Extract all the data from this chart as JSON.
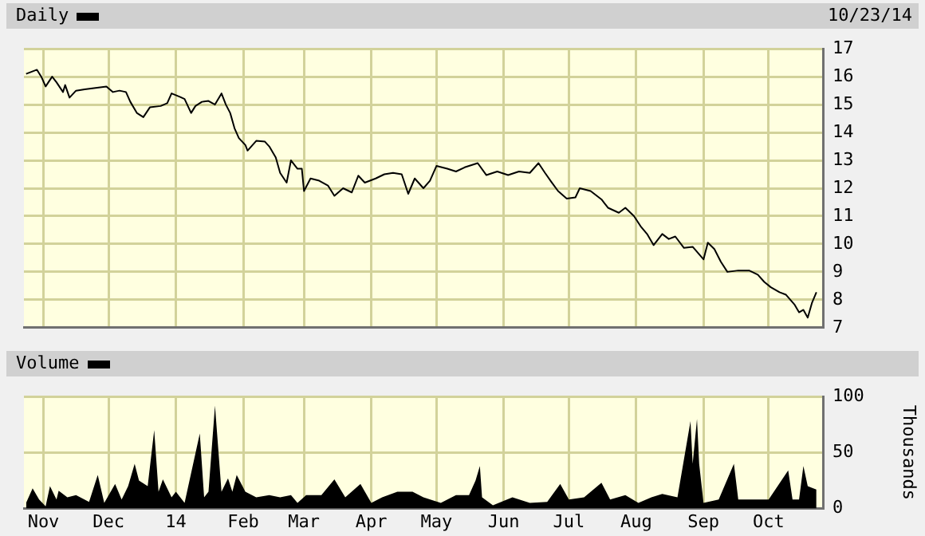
{
  "chart_data": [
    {
      "type": "line",
      "legend": "top left",
      "tick_labels": "y",
      "grid": true,
      "annotations": [
        "10/23/14"
      ],
      "xlim": [
        "2013-10-23",
        "2014-10-26"
      ],
      "xticks": [
        {
          "value": "2013-11-01",
          "label": null
        },
        {
          "value": "2013-12-01",
          "label": null
        },
        {
          "value": "2014-01-01",
          "label": null
        },
        {
          "value": "2014-02-01",
          "label": null
        },
        {
          "value": "2014-03-01",
          "label": null
        },
        {
          "value": "2014-04-01",
          "label": null
        },
        {
          "value": "2014-05-01",
          "label": null
        },
        {
          "value": "2014-06-01",
          "label": null
        },
        {
          "value": "2014-07-01",
          "label": null
        },
        {
          "value": "2014-08-01",
          "label": null
        },
        {
          "value": "2014-09-01",
          "label": null
        },
        {
          "value": "2014-10-01",
          "label": null
        }
      ],
      "ylim": [
        7,
        17
      ],
      "yticks": [
        7,
        8,
        9,
        10,
        11,
        12,
        13,
        14,
        15,
        16,
        17
      ],
      "x": [
        "2013-10-24",
        "2013-10-29",
        "2013-10-31",
        "2013-11-02",
        "2013-11-05",
        "2013-11-07",
        "2013-11-10",
        "2013-11-11",
        "2013-11-13",
        "2013-11-16",
        "2013-11-20",
        "2013-11-25",
        "2013-11-30",
        "2013-12-03",
        "2013-12-06",
        "2013-12-09",
        "2013-12-11",
        "2013-12-14",
        "2013-12-17",
        "2013-12-20",
        "2013-12-25",
        "2013-12-28",
        "2013-12-30",
        "2014-01-03",
        "2014-01-05",
        "2014-01-08",
        "2014-01-10",
        "2014-01-13",
        "2014-01-16",
        "2014-01-19",
        "2014-01-22",
        "2014-01-24",
        "2014-01-26",
        "2014-01-28",
        "2014-01-30",
        "2014-02-02",
        "2014-02-03",
        "2014-02-07",
        "2014-02-11",
        "2014-02-13",
        "2014-02-16",
        "2014-02-18",
        "2014-02-21",
        "2014-02-23",
        "2014-02-26",
        "2014-02-28",
        "2014-03-01",
        "2014-03-04",
        "2014-03-08",
        "2014-03-12",
        "2014-03-15",
        "2014-03-19",
        "2014-03-23",
        "2014-03-26",
        "2014-03-29",
        "2014-04-03",
        "2014-04-07",
        "2014-04-11",
        "2014-04-15",
        "2014-04-18",
        "2014-04-21",
        "2014-04-25",
        "2014-04-28",
        "2014-05-01",
        "2014-05-06",
        "2014-05-10",
        "2014-05-14",
        "2014-05-20",
        "2014-05-24",
        "2014-05-29",
        "2014-06-03",
        "2014-06-08",
        "2014-06-13",
        "2014-06-17",
        "2014-06-20",
        "2014-06-23",
        "2014-06-26",
        "2014-06-30",
        "2014-07-04",
        "2014-07-06",
        "2014-07-11",
        "2014-07-16",
        "2014-07-19",
        "2014-07-24",
        "2014-07-27",
        "2014-07-31",
        "2014-08-03",
        "2014-08-06",
        "2014-08-09",
        "2014-08-13",
        "2014-08-16",
        "2014-08-19",
        "2014-08-23",
        "2014-08-27",
        "2014-09-01",
        "2014-09-03",
        "2014-09-06",
        "2014-09-09",
        "2014-09-12",
        "2014-09-17",
        "2014-09-22",
        "2014-09-26",
        "2014-09-29",
        "2014-10-02",
        "2014-10-06",
        "2014-10-09",
        "2014-10-13",
        "2014-10-15",
        "2014-10-17",
        "2014-10-19",
        "2014-10-21",
        "2014-10-23"
      ],
      "series": [
        {
          "name": "Daily",
          "color": "#000000",
          "values": [
            16.1,
            16.25,
            16.0,
            15.65,
            16.0,
            15.8,
            15.45,
            15.7,
            15.25,
            15.5,
            15.55,
            15.6,
            15.65,
            15.45,
            15.5,
            15.45,
            15.1,
            14.7,
            14.55,
            14.9,
            14.95,
            15.05,
            15.4,
            15.27,
            15.2,
            14.7,
            14.95,
            15.1,
            15.13,
            15.0,
            15.4,
            15.0,
            14.7,
            14.15,
            13.8,
            13.55,
            13.35,
            13.7,
            13.67,
            13.5,
            13.1,
            12.55,
            12.2,
            13.0,
            12.7,
            12.7,
            11.9,
            12.35,
            12.27,
            12.1,
            11.73,
            12.0,
            11.85,
            12.45,
            12.2,
            12.35,
            12.5,
            12.55,
            12.5,
            11.8,
            12.35,
            12.0,
            12.27,
            12.8,
            12.7,
            12.6,
            12.75,
            12.9,
            12.47,
            12.6,
            12.47,
            12.6,
            12.55,
            12.9,
            12.55,
            12.22,
            11.9,
            11.63,
            11.67,
            12.0,
            11.9,
            11.6,
            11.3,
            11.12,
            11.3,
            11.0,
            10.64,
            10.36,
            9.96,
            10.36,
            10.18,
            10.27,
            9.86,
            9.9,
            9.45,
            10.05,
            9.82,
            9.36,
            9.0,
            9.05,
            9.05,
            8.9,
            8.64,
            8.45,
            8.27,
            8.18,
            7.82,
            7.55,
            7.64,
            7.36,
            7.9,
            8.27
          ]
        }
      ]
    },
    {
      "type": "area",
      "legend": "top left",
      "grid": true,
      "ylabel": "Thousands",
      "xlim": [
        "2013-10-23",
        "2014-10-26"
      ],
      "xticks": [
        {
          "value": "2013-11-01",
          "label": "Nov"
        },
        {
          "value": "2013-12-01",
          "label": "Dec"
        },
        {
          "value": "2014-01-01",
          "label": "14"
        },
        {
          "value": "2014-02-01",
          "label": "Feb"
        },
        {
          "value": "2014-03-01",
          "label": "Mar"
        },
        {
          "value": "2014-04-01",
          "label": "Apr"
        },
        {
          "value": "2014-05-01",
          "label": "May"
        },
        {
          "value": "2014-06-01",
          "label": "Jun"
        },
        {
          "value": "2014-07-01",
          "label": "Jul"
        },
        {
          "value": "2014-08-01",
          "label": "Aug"
        },
        {
          "value": "2014-09-01",
          "label": "Sep"
        },
        {
          "value": "2014-10-01",
          "label": "Oct"
        }
      ],
      "ylim": [
        0,
        100
      ],
      "yticks": [
        0,
        50,
        100
      ],
      "x": [
        "2013-10-24",
        "2013-10-27",
        "2013-10-30",
        "2013-11-02",
        "2013-11-04",
        "2013-11-07",
        "2013-11-08",
        "2013-11-12",
        "2013-11-16",
        "2013-11-22",
        "2013-11-26",
        "2013-11-29",
        "2013-12-04",
        "2013-12-07",
        "2013-12-10",
        "2013-12-13",
        "2013-12-15",
        "2013-12-19",
        "2013-12-22",
        "2013-12-24",
        "2013-12-26",
        "2013-12-30",
        "2014-01-01",
        "2014-01-05",
        "2014-01-12",
        "2014-01-14",
        "2014-01-16",
        "2014-01-19",
        "2014-01-22",
        "2014-01-25",
        "2014-01-27",
        "2014-01-29",
        "2014-02-02",
        "2014-02-07",
        "2014-02-13",
        "2014-02-18",
        "2014-02-23",
        "2014-02-26",
        "2014-03-02",
        "2014-03-09",
        "2014-03-15",
        "2014-03-20",
        "2014-03-27",
        "2014-04-01",
        "2014-04-06",
        "2014-04-13",
        "2014-04-20",
        "2014-04-25",
        "2014-05-03",
        "2014-05-10",
        "2014-05-16",
        "2014-05-19",
        "2014-05-21",
        "2014-05-22",
        "2014-05-27",
        "2014-06-05",
        "2014-06-13",
        "2014-06-21",
        "2014-06-27",
        "2014-07-01",
        "2014-07-08",
        "2014-07-16",
        "2014-07-20",
        "2014-07-27",
        "2014-08-02",
        "2014-08-08",
        "2014-08-13",
        "2014-08-20",
        "2014-08-26",
        "2014-08-27",
        "2014-08-29",
        "2014-08-30",
        "2014-09-01",
        "2014-09-08",
        "2014-09-15",
        "2014-09-17",
        "2014-09-24",
        "2014-10-01",
        "2014-10-10",
        "2014-10-12",
        "2014-10-15",
        "2014-10-17",
        "2014-10-19",
        "2014-10-23"
      ],
      "series": [
        {
          "name": "Volume",
          "color": "#000000",
          "values": [
            5,
            18,
            8,
            2,
            20,
            8,
            16,
            10,
            12,
            6,
            30,
            5,
            22,
            8,
            20,
            40,
            25,
            20,
            70,
            15,
            26,
            10,
            15,
            5,
            67,
            10,
            15,
            92,
            15,
            27,
            15,
            30,
            15,
            10,
            12,
            10,
            12,
            5,
            12,
            12,
            26,
            10,
            22,
            5,
            10,
            15,
            15,
            10,
            5,
            12,
            12,
            25,
            38,
            10,
            3,
            10,
            5,
            6,
            22,
            8,
            10,
            23,
            8,
            12,
            5,
            10,
            13,
            10,
            78,
            40,
            80,
            40,
            5,
            8,
            40,
            8,
            8,
            8,
            34,
            8,
            8,
            38,
            20,
            17
          ]
        }
      ]
    }
  ]
}
